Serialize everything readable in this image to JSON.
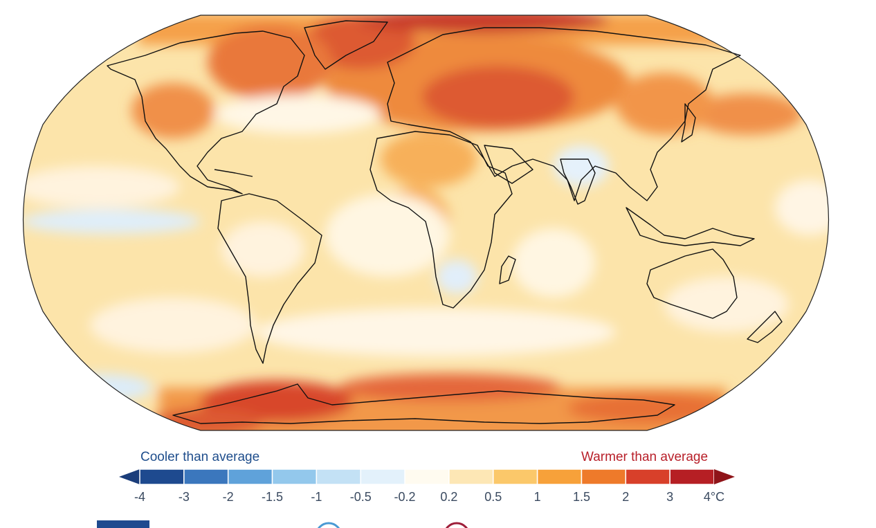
{
  "legend": {
    "cooler_label": "Cooler than average",
    "warmer_label": "Warmer than average",
    "ticks": [
      "-4",
      "-3",
      "-2",
      "-1.5",
      "-1",
      "-0.5",
      "-0.2",
      "0.2",
      "0.5",
      "1",
      "1.5",
      "2",
      "3",
      "4°C"
    ],
    "colors": [
      "#1e4a8f",
      "#3b77bd",
      "#5fa2da",
      "#93c8ec",
      "#c3e1f5",
      "#e3f1fb",
      "#fffbf0",
      "#fde7b5",
      "#fbc86a",
      "#f7a13a",
      "#ee7a2a",
      "#d8402a",
      "#b61f24"
    ],
    "arrow_low_color": "#1b3d7a",
    "arrow_high_color": "#8f1419"
  },
  "map": {
    "projection": "Robinson",
    "background_color": "#fbe2a6",
    "coastline_color": "#111111"
  }
}
